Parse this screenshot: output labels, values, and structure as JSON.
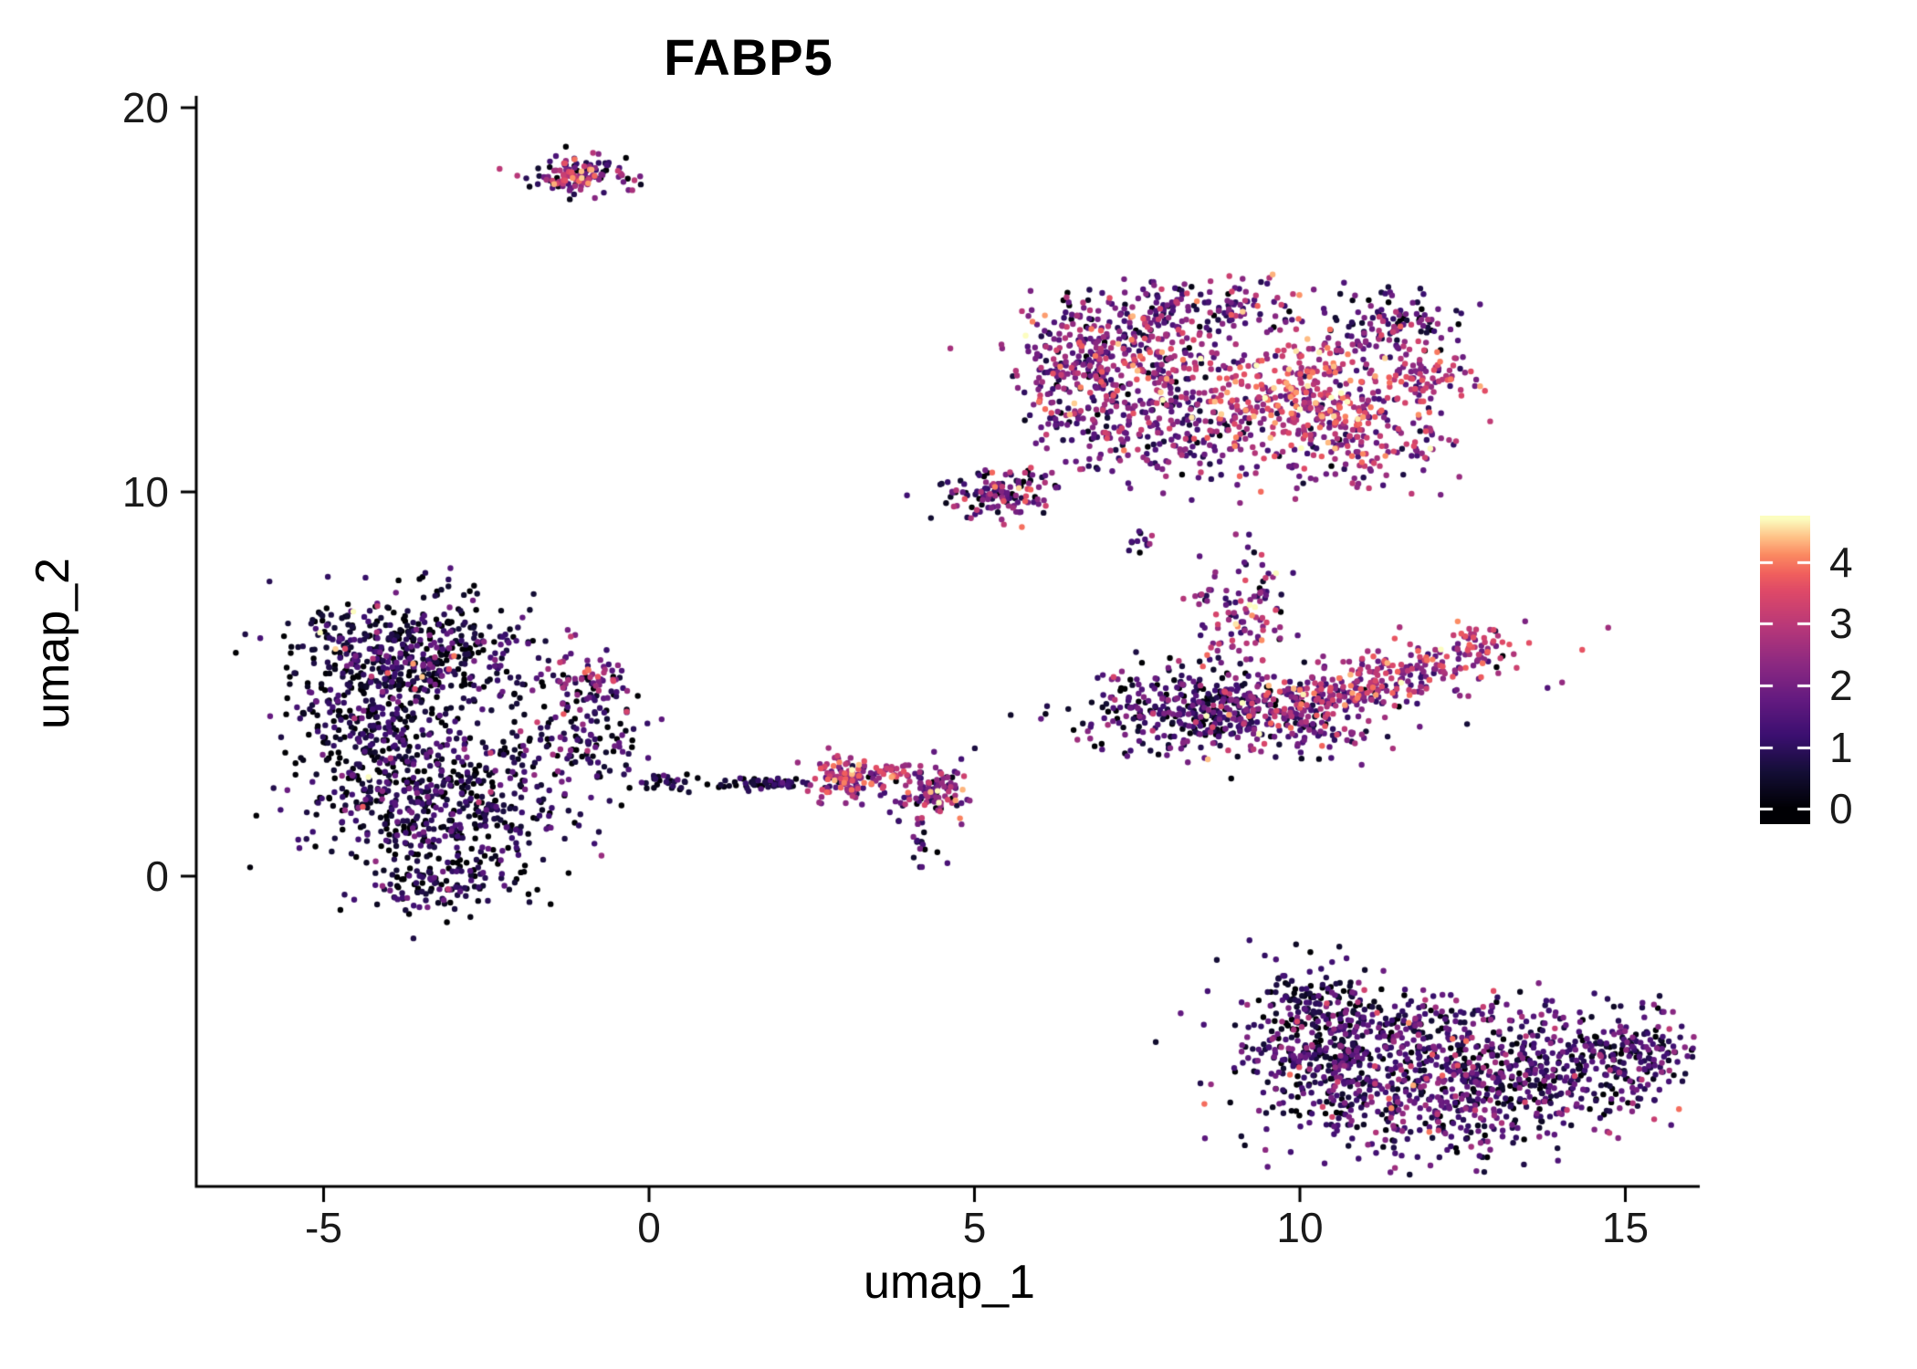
{
  "colors": {
    "background": "#FFFFFF",
    "axis": "#000000",
    "text": "#1A1A1A"
  },
  "chart_data": {
    "type": "scatter",
    "title": "FABP5",
    "xlabel": "umap_1",
    "ylabel": "umap_2",
    "x_ticks": [
      -5,
      0,
      5,
      10,
      15
    ],
    "y_ticks": [
      0,
      10,
      20
    ],
    "xlim": [
      -6.96,
      16.15
    ],
    "ylim": [
      -8.1,
      20.3
    ],
    "grid": false,
    "point_radius_px": 3.2,
    "legend": {
      "type": "colorbar",
      "position": "right",
      "ticks": [
        4,
        3,
        2,
        1,
        0
      ],
      "domain": [
        -0.25,
        4.75
      ],
      "max_expression": 4.7,
      "colormap": "magma",
      "colormap_anchors": [
        {
          "t": 0.0,
          "c": "#000004"
        },
        {
          "t": 0.125,
          "c": "#140E36"
        },
        {
          "t": 0.25,
          "c": "#3B0F70"
        },
        {
          "t": 0.375,
          "c": "#641A80"
        },
        {
          "t": 0.5,
          "c": "#8C2981"
        },
        {
          "t": 0.625,
          "c": "#B73779"
        },
        {
          "t": 0.75,
          "c": "#DE4968"
        },
        {
          "t": 0.8125,
          "c": "#F1605D"
        },
        {
          "t": 0.875,
          "c": "#FB8861"
        },
        {
          "t": 0.9375,
          "c": "#FEC287"
        },
        {
          "t": 1.0,
          "c": "#FCFDBF"
        }
      ]
    },
    "clusters": [
      {
        "name": "top-isle-main",
        "cx": -1.05,
        "cy": 18.25,
        "sx": 0.38,
        "sy": 0.28,
        "rot": 0,
        "n": 100,
        "expr_mean": 1.7,
        "expr_sd": 1.3
      },
      {
        "name": "top-isle-orange-core",
        "cx": -1.15,
        "cy": 18.22,
        "sx": 0.16,
        "sy": 0.12,
        "rot": 0,
        "n": 30,
        "expr_mean": 3.2,
        "expr_sd": 0.7
      },
      {
        "name": "upper-left-edge",
        "cx": 6.6,
        "cy": 12.8,
        "sx": 0.5,
        "sy": 0.9,
        "rot": 0,
        "n": 150,
        "expr_mean": 1.9,
        "expr_sd": 1.1
      },
      {
        "name": "upper-main-left",
        "cx": 7.3,
        "cy": 13.7,
        "sx": 0.85,
        "sy": 0.75,
        "rot": 0,
        "n": 320,
        "expr_mean": 2.0,
        "expr_sd": 1.1
      },
      {
        "name": "upper-orange-core",
        "cx": 10.0,
        "cy": 12.6,
        "sx": 1.0,
        "sy": 0.7,
        "rot": 0,
        "n": 380,
        "expr_mean": 3.0,
        "expr_sd": 0.9
      },
      {
        "name": "upper-lower-left",
        "cx": 8.0,
        "cy": 11.5,
        "sx": 0.9,
        "sy": 0.6,
        "rot": 0,
        "n": 220,
        "expr_mean": 1.8,
        "expr_sd": 1.0
      },
      {
        "name": "upper-lower-right",
        "cx": 10.9,
        "cy": 11.3,
        "sx": 0.75,
        "sy": 0.6,
        "rot": 0,
        "n": 170,
        "expr_mean": 2.2,
        "expr_sd": 1.0
      },
      {
        "name": "upper-topright-dark",
        "cx": 11.4,
        "cy": 14.3,
        "sx": 0.55,
        "sy": 0.45,
        "rot": 0,
        "n": 110,
        "expr_mean": 1.2,
        "expr_sd": 1.0
      },
      {
        "name": "upper-tail",
        "cx": 5.4,
        "cy": 10.0,
        "sx": 0.45,
        "sy": 0.35,
        "rot": 0,
        "n": 130,
        "expr_mean": 1.6,
        "expr_sd": 1.2
      },
      {
        "name": "upper-top",
        "cx": 8.6,
        "cy": 14.8,
        "sx": 0.8,
        "sy": 0.4,
        "rot": 0,
        "n": 120,
        "expr_mean": 1.8,
        "expr_sd": 1.1
      },
      {
        "name": "upper-right-spur",
        "cx": 11.9,
        "cy": 13.0,
        "sx": 0.3,
        "sy": 0.3,
        "rot": 0,
        "n": 60,
        "expr_mean": 2.8,
        "expr_sd": 0.8
      },
      {
        "name": "tiny-isle",
        "cx": 7.55,
        "cy": 8.75,
        "sx": 0.12,
        "sy": 0.16,
        "rot": 0,
        "n": 12,
        "expr_mean": 1.5,
        "expr_sd": 1.0
      },
      {
        "name": "mid-dark-main",
        "cx": 8.3,
        "cy": 4.3,
        "sx": 0.85,
        "sy": 0.55,
        "rot": 0,
        "n": 330,
        "expr_mean": 1.0,
        "expr_sd": 0.9
      },
      {
        "name": "mid-center",
        "cx": 9.9,
        "cy": 4.2,
        "sx": 0.8,
        "sy": 0.5,
        "rot": 0,
        "n": 230,
        "expr_mean": 1.7,
        "expr_sd": 1.1
      },
      {
        "name": "mid-pink-arm",
        "cx": 11.2,
        "cy": 5.1,
        "sx": 1.1,
        "sy": 0.35,
        "rot": 20,
        "n": 260,
        "expr_mean": 2.6,
        "expr_sd": 1.0
      },
      {
        "name": "mid-top-arm",
        "cx": 9.1,
        "cy": 6.9,
        "sx": 0.4,
        "sy": 0.7,
        "rot": 0,
        "n": 110,
        "expr_mean": 2.0,
        "expr_sd": 1.2
      },
      {
        "name": "mid-right-tip",
        "cx": 12.7,
        "cy": 6.1,
        "sx": 0.25,
        "sy": 0.2,
        "rot": 0,
        "n": 35,
        "expr_mean": 3.0,
        "expr_sd": 0.8
      },
      {
        "name": "left-upper-lobe",
        "cx": -3.6,
        "cy": 5.8,
        "sx": 0.95,
        "sy": 0.8,
        "rot": 0,
        "n": 480,
        "expr_mean": 0.55,
        "expr_sd": 0.75
      },
      {
        "name": "left-lower-lobe",
        "cx": -3.1,
        "cy": 1.8,
        "sx": 1.0,
        "sy": 1.0,
        "rot": 0,
        "n": 520,
        "expr_mean": 0.6,
        "expr_sd": 0.8
      },
      {
        "name": "left-west",
        "cx": -4.3,
        "cy": 3.9,
        "sx": 0.6,
        "sy": 0.9,
        "rot": 0,
        "n": 260,
        "expr_mean": 0.5,
        "expr_sd": 0.7
      },
      {
        "name": "left-right-spur",
        "cx": -1.0,
        "cy": 5.0,
        "sx": 0.35,
        "sy": 0.4,
        "rot": 0,
        "n": 80,
        "expr_mean": 1.6,
        "expr_sd": 1.2
      },
      {
        "name": "left-east-spur",
        "cx": -1.1,
        "cy": 3.3,
        "sx": 0.45,
        "sy": 0.5,
        "rot": 0,
        "n": 90,
        "expr_mean": 0.8,
        "expr_sd": 0.9
      },
      {
        "name": "left-bottom-fringe",
        "cx": -3.3,
        "cy": -0.3,
        "sx": 0.6,
        "sy": 0.35,
        "rot": 0,
        "n": 90,
        "expr_mean": 0.6,
        "expr_sd": 0.8
      },
      {
        "name": "left-sparkle-upper",
        "cx": -3.9,
        "cy": 5.9,
        "sx": 0.8,
        "sy": 0.7,
        "rot": 0,
        "n": 25,
        "expr_mean": 2.6,
        "expr_sd": 1.0
      },
      {
        "name": "left-sparkle-lower",
        "cx": -3.4,
        "cy": 2.2,
        "sx": 0.8,
        "sy": 0.8,
        "rot": 0,
        "n": 18,
        "expr_mean": 2.4,
        "expr_sd": 1.0
      },
      {
        "name": "left-trail",
        "cx": -0.5,
        "cy": 4.2,
        "sx": 0.35,
        "sy": 0.25,
        "rot": 0,
        "n": 18,
        "expr_mean": 0.7,
        "expr_sd": 0.8
      },
      {
        "name": "center-bridge",
        "cx": 0.1,
        "cy": 2.5,
        "sx": 0.5,
        "sy": 0.15,
        "rot": 0,
        "n": 14,
        "expr_mean": 0.5,
        "expr_sd": 0.6
      },
      {
        "name": "center-line",
        "cx": 1.75,
        "cy": 2.4,
        "sx": 0.6,
        "sy": 0.08,
        "rot": 0,
        "n": 60,
        "expr_mean": 0.5,
        "expr_sd": 0.6
      },
      {
        "name": "center-line-left",
        "cx": 0.45,
        "cy": 2.45,
        "sx": 0.3,
        "sy": 0.1,
        "rot": 0,
        "n": 12,
        "expr_mean": 0.4,
        "expr_sd": 0.5
      },
      {
        "name": "center-pink-clump",
        "cx": 3.05,
        "cy": 2.55,
        "sx": 0.3,
        "sy": 0.28,
        "rot": 0,
        "n": 110,
        "expr_mean": 2.6,
        "expr_sd": 1.0
      },
      {
        "name": "center-orange-streak",
        "cx": 3.75,
        "cy": 2.75,
        "sx": 0.13,
        "sy": 0.1,
        "rot": 0,
        "n": 20,
        "expr_mean": 3.2,
        "expr_sd": 0.6
      },
      {
        "name": "center-right-clump",
        "cx": 4.35,
        "cy": 2.2,
        "sx": 0.32,
        "sy": 0.4,
        "rot": 0,
        "n": 110,
        "expr_mean": 2.0,
        "expr_sd": 1.2
      },
      {
        "name": "center-drip",
        "cx": 4.15,
        "cy": 1.0,
        "sx": 0.15,
        "sy": 0.35,
        "rot": 0,
        "n": 18,
        "expr_mean": 1.0,
        "expr_sd": 0.8
      },
      {
        "name": "bottom-left-knob",
        "cx": 10.3,
        "cy": -4.4,
        "sx": 0.7,
        "sy": 1.0,
        "rot": 0,
        "n": 320,
        "expr_mean": 0.9,
        "expr_sd": 0.8
      },
      {
        "name": "bottom-mid",
        "cx": 12.0,
        "cy": -5.9,
        "sx": 1.1,
        "sy": 0.75,
        "rot": 0,
        "n": 380,
        "expr_mean": 1.1,
        "expr_sd": 0.9
      },
      {
        "name": "bottom-right",
        "cx": 13.9,
        "cy": -5.0,
        "sx": 1.0,
        "sy": 0.7,
        "rot": 0,
        "n": 320,
        "expr_mean": 1.0,
        "expr_sd": 0.85
      },
      {
        "name": "bottom-top-band",
        "cx": 11.8,
        "cy": -4.0,
        "sx": 1.0,
        "sy": 0.55,
        "rot": 0,
        "n": 210,
        "expr_mean": 1.2,
        "expr_sd": 0.9
      },
      {
        "name": "bottom-top-tip",
        "cx": 10.2,
        "cy": -3.2,
        "sx": 0.4,
        "sy": 0.3,
        "rot": 0,
        "n": 55,
        "expr_mean": 0.5,
        "expr_sd": 0.6
      },
      {
        "name": "bottom-right-arm",
        "cx": 15.2,
        "cy": -4.7,
        "sx": 0.5,
        "sy": 0.55,
        "rot": 0,
        "n": 120,
        "expr_mean": 1.1,
        "expr_sd": 0.9
      },
      {
        "name": "bottom-sparkle",
        "cx": 11.8,
        "cy": -5.0,
        "sx": 1.6,
        "sy": 1.0,
        "rot": 0,
        "n": 60,
        "expr_mean": 2.6,
        "expr_sd": 0.8
      }
    ]
  }
}
